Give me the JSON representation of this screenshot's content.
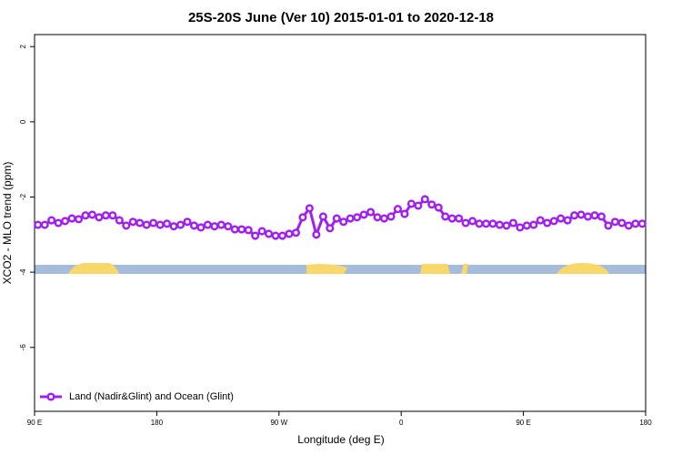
{
  "chart_data": {
    "type": "line",
    "title": "25S-20S June (Ver 10)   2015-01-01 to 2020-12-18",
    "x_label": "Longitude (deg E)",
    "y_label": "XCO2 - MLO trend (ppm)",
    "x": [
      92.5,
      97.5,
      102.5,
      107.5,
      112.5,
      117.5,
      122.5,
      127.5,
      132.5,
      137.5,
      142.5,
      147.5,
      152.5,
      157.5,
      162.5,
      167.5,
      172.5,
      177.5,
      182.5,
      187.5,
      192.5,
      197.5,
      202.5,
      207.5,
      212.5,
      217.5,
      222.5,
      227.5,
      232.5,
      237.5,
      242.5,
      247.5,
      252.5,
      257.5,
      262.5,
      267.5,
      272.5,
      277.5,
      282.5,
      287.5,
      292.5,
      297.5,
      302.5,
      307.5,
      312.5,
      317.5,
      322.5,
      327.5,
      332.5,
      337.5,
      342.5,
      347.5,
      352.5,
      357.5,
      362.5,
      367.5,
      372.5,
      377.5,
      382.5,
      387.5,
      392.5,
      397.5,
      402.5,
      407.5,
      412.5,
      417.5,
      422.5,
      427.5,
      432.5,
      437.5,
      442.5,
      447.5,
      452.5,
      457.5,
      462.5,
      467.5,
      472.5,
      477.5,
      482.5,
      487.5,
      492.5,
      497.5,
      502.5,
      507.5,
      512.5,
      517.5,
      522.5,
      527.5,
      532.5,
      537.5
    ],
    "series": [
      {
        "name": "Land (Nadir&Glint) and Ocean (Glint)",
        "color": "#a020f0",
        "values": [
          -2.74,
          -2.74,
          -2.62,
          -2.69,
          -2.64,
          -2.57,
          -2.59,
          -2.49,
          -2.47,
          -2.54,
          -2.49,
          -2.49,
          -2.62,
          -2.76,
          -2.66,
          -2.69,
          -2.74,
          -2.69,
          -2.74,
          -2.71,
          -2.78,
          -2.74,
          -2.66,
          -2.76,
          -2.81,
          -2.74,
          -2.78,
          -2.74,
          -2.78,
          -2.86,
          -2.86,
          -2.88,
          -3.03,
          -2.91,
          -2.98,
          -3.03,
          -3.03,
          -2.98,
          -2.95,
          -2.54,
          -2.3,
          -3.0,
          -2.52,
          -2.83,
          -2.57,
          -2.66,
          -2.57,
          -2.54,
          -2.47,
          -2.4,
          -2.54,
          -2.57,
          -2.52,
          -2.32,
          -2.45,
          -2.18,
          -2.23,
          -2.06,
          -2.2,
          -2.28,
          -2.52,
          -2.57,
          -2.57,
          -2.69,
          -2.64,
          -2.71,
          -2.71,
          -2.71,
          -2.74,
          -2.76,
          -2.69,
          -2.81,
          -2.76,
          -2.74,
          -2.62,
          -2.69,
          -2.64,
          -2.57,
          -2.62,
          -2.49,
          -2.47,
          -2.52,
          -2.49,
          -2.52,
          -2.76,
          -2.66,
          -2.69,
          -2.76,
          -2.71,
          -2.71
        ]
      }
    ],
    "xlim": [
      90,
      540
    ],
    "xticks": [
      {
        "value": 90,
        "label": "90 E"
      },
      180,
      {
        "value": 270,
        "label": "90 W"
      },
      {
        "value": 360,
        "label": "0"
      },
      {
        "value": 450,
        "label": "90 E"
      },
      {
        "value": 540,
        "label": "180"
      }
    ],
    "ylim": [
      -7.7,
      2.32
    ],
    "yticks": [
      2,
      0,
      -2,
      -4,
      -6
    ],
    "legend": "bottom-left"
  }
}
